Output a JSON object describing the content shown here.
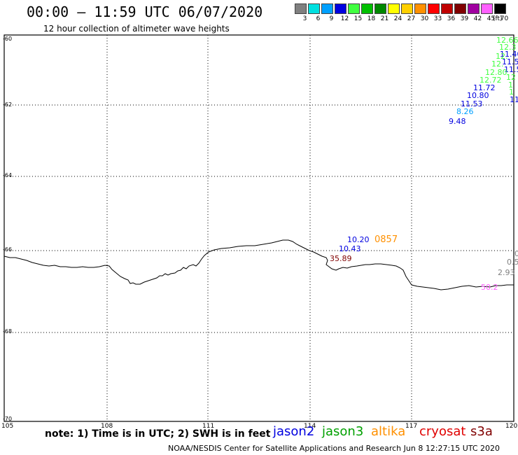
{
  "header": {
    "title": "00:00 – 11:59 UTC 06/07/2020",
    "subtitle": "12 hour collection of altimeter wave heights"
  },
  "legend": {
    "unit": "(ft)",
    "bins": [
      {
        "label": "3",
        "color": "#808080"
      },
      {
        "label": "6",
        "color": "#00e0e0"
      },
      {
        "label": "9",
        "color": "#00a0ff"
      },
      {
        "label": "12",
        "color": "#0000e0"
      },
      {
        "label": "15",
        "color": "#40ff40"
      },
      {
        "label": "18",
        "color": "#00c000"
      },
      {
        "label": "21",
        "color": "#008800"
      },
      {
        "label": "24",
        "color": "#ffff00"
      },
      {
        "label": "27",
        "color": "#ffd000"
      },
      {
        "label": "30",
        "color": "#ff9000"
      },
      {
        "label": "33",
        "color": "#ff0000"
      },
      {
        "label": "36",
        "color": "#c00000"
      },
      {
        "label": "39",
        "color": "#800000"
      },
      {
        "label": "42",
        "color": "#a000a0"
      },
      {
        "label": "45",
        "color": "#ff60ff"
      },
      {
        "label": "70",
        "color": "#000000"
      }
    ]
  },
  "map": {
    "lat_labels": [
      "-60",
      "-62",
      "-64",
      "-66",
      "-68",
      "-70"
    ],
    "lon_labels": [
      "105",
      "108",
      "111",
      "114",
      "117",
      "120"
    ],
    "wave_heights": [
      {
        "text": "12.66",
        "color": "#40ff40"
      },
      {
        "text": "12.3",
        "color": "#40ff40"
      },
      {
        "text": "11.40",
        "color": "#0000e0"
      },
      {
        "text": "12.",
        "color": "#40ff40"
      },
      {
        "text": "11.5",
        "color": "#0000e0"
      },
      {
        "text": "12.",
        "color": "#40ff40"
      },
      {
        "text": "11.5",
        "color": "#0000e0"
      },
      {
        "text": "12.80",
        "color": "#40ff40"
      },
      {
        "text": "12",
        "color": "#40ff40"
      },
      {
        "text": "12.72",
        "color": "#40ff40"
      },
      {
        "text": "11.72",
        "color": "#0000e0"
      },
      {
        "text": "1",
        "color": "#40ff40"
      },
      {
        "text": "10.80",
        "color": "#0000e0"
      },
      {
        "text": "1",
        "color": "#40ff40"
      },
      {
        "text": "11.53",
        "color": "#0000e0"
      },
      {
        "text": "11",
        "color": "#0000e0"
      },
      {
        "text": "8.26",
        "color": "#00a0ff"
      },
      {
        "text": "9.48",
        "color": "#0000e0"
      },
      {
        "text": "10.20",
        "color": "#0000e0"
      },
      {
        "text": "0857",
        "color": "#ff9000"
      },
      {
        "text": "10.43",
        "color": "#0000e0"
      },
      {
        "text": "35.89",
        "color": "#800000"
      },
      {
        "text": "0",
        "color": "#808080"
      },
      {
        "text": "0.5",
        "color": "#808080"
      },
      {
        "text": "2.93",
        "color": "#808080"
      },
      {
        "text": "50.2",
        "color": "#ff60ff"
      }
    ]
  },
  "footer": {
    "note": "note: 1) Time is in UTC; 2) SWH is in feet",
    "satellites": [
      {
        "name": "jason2",
        "color": "#0000e0"
      },
      {
        "name": "jason3",
        "color": "#00a000"
      },
      {
        "name": "altika",
        "color": "#ff9000"
      },
      {
        "name": "cryosat",
        "color": "#e00000"
      },
      {
        "name": "s3a",
        "color": "#800000"
      }
    ],
    "credit": "NOAA/NESDIS Center for Satellite Applications and Research   Jun  8 12:27:15 UTC 2020"
  }
}
